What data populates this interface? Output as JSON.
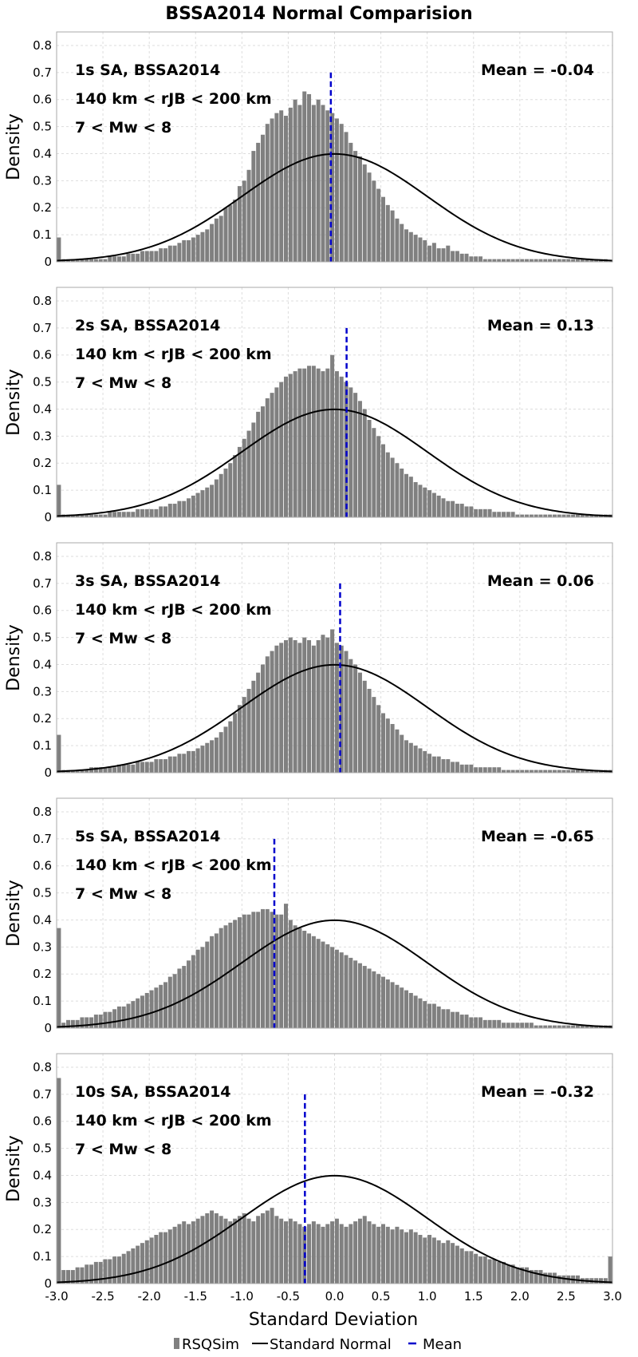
{
  "chart_data": {
    "type": "bar",
    "title": "BSSA2014 Normal Comparision",
    "xlabel": "Standard Deviation",
    "ylabel": "Density",
    "xlim": [
      -3.0,
      3.0
    ],
    "ylim": [
      0,
      0.85
    ],
    "xticks": [
      "-3.0",
      "-2.5",
      "-2.0",
      "-1.5",
      "-1.0",
      "-0.5",
      "0.0",
      "0.5",
      "1.0",
      "1.5",
      "2.0",
      "2.5",
      "3.0"
    ],
    "yticks": [
      "0",
      "0.1",
      "0.2",
      "0.3",
      "0.4",
      "0.5",
      "0.6",
      "0.7",
      "0.8"
    ],
    "grid": true,
    "legend": {
      "position": "bottom-center",
      "entries": [
        "RSQSim",
        "Standard Normal",
        "Mean"
      ]
    },
    "colors": {
      "bars": "#808080",
      "normal": "#000000",
      "mean": "#0000cc",
      "grid": "#dddddd"
    },
    "bin_start": -3.0,
    "bin_width": 0.05,
    "panels": [
      {
        "label_1": "1s SA, BSSA2014",
        "label_2": "140 km < rJB < 200 km",
        "label_3": "7 < Mw < 8",
        "mean_label": "Mean = -0.04",
        "mean": -0.04,
        "densities": [
          0.09,
          0.01,
          0.01,
          0.01,
          0.01,
          0.01,
          0.01,
          0.01,
          0.01,
          0.01,
          0.01,
          0.02,
          0.02,
          0.02,
          0.02,
          0.03,
          0.03,
          0.03,
          0.04,
          0.04,
          0.04,
          0.04,
          0.05,
          0.05,
          0.06,
          0.06,
          0.07,
          0.08,
          0.08,
          0.09,
          0.1,
          0.11,
          0.12,
          0.14,
          0.16,
          0.17,
          0.2,
          0.21,
          0.23,
          0.28,
          0.3,
          0.34,
          0.41,
          0.44,
          0.47,
          0.51,
          0.53,
          0.55,
          0.56,
          0.54,
          0.57,
          0.6,
          0.58,
          0.63,
          0.62,
          0.58,
          0.6,
          0.58,
          0.56,
          0.55,
          0.53,
          0.51,
          0.48,
          0.44,
          0.41,
          0.39,
          0.36,
          0.33,
          0.3,
          0.27,
          0.24,
          0.21,
          0.19,
          0.16,
          0.14,
          0.12,
          0.11,
          0.1,
          0.09,
          0.08,
          0.06,
          0.07,
          0.05,
          0.05,
          0.06,
          0.04,
          0.04,
          0.03,
          0.03,
          0.02,
          0.02,
          0.02,
          0.01,
          0.01,
          0.01,
          0.01,
          0.01,
          0.01,
          0.01,
          0.01,
          0.01,
          0.01,
          0.01,
          0.01,
          0.01,
          0.01,
          0.01,
          0.01,
          0.01,
          0.01,
          0.01,
          0.01,
          0.01,
          0.01,
          0.01,
          0.01,
          0.01,
          0.01,
          0.01,
          0.0
        ]
      },
      {
        "label_1": "2s SA, BSSA2014",
        "label_2": "140 km < rJB < 200 km",
        "label_3": "7 < Mw < 8",
        "mean_label": "Mean = 0.13",
        "mean": 0.13,
        "densities": [
          0.12,
          0.01,
          0.01,
          0.01,
          0.01,
          0.01,
          0.01,
          0.01,
          0.01,
          0.01,
          0.01,
          0.02,
          0.02,
          0.02,
          0.02,
          0.02,
          0.02,
          0.03,
          0.03,
          0.03,
          0.03,
          0.03,
          0.04,
          0.04,
          0.05,
          0.05,
          0.06,
          0.06,
          0.07,
          0.08,
          0.09,
          0.1,
          0.11,
          0.12,
          0.14,
          0.16,
          0.18,
          0.2,
          0.23,
          0.26,
          0.29,
          0.32,
          0.35,
          0.39,
          0.41,
          0.44,
          0.46,
          0.48,
          0.5,
          0.52,
          0.53,
          0.54,
          0.55,
          0.55,
          0.56,
          0.56,
          0.55,
          0.54,
          0.55,
          0.6,
          0.54,
          0.52,
          0.5,
          0.48,
          0.46,
          0.43,
          0.4,
          0.36,
          0.33,
          0.3,
          0.27,
          0.24,
          0.22,
          0.2,
          0.18,
          0.16,
          0.15,
          0.13,
          0.12,
          0.11,
          0.1,
          0.09,
          0.08,
          0.07,
          0.06,
          0.06,
          0.05,
          0.05,
          0.04,
          0.04,
          0.03,
          0.03,
          0.03,
          0.03,
          0.02,
          0.02,
          0.02,
          0.02,
          0.02,
          0.01,
          0.01,
          0.01,
          0.01,
          0.01,
          0.01,
          0.01,
          0.01,
          0.01,
          0.01,
          0.01,
          0.01,
          0.01,
          0.01,
          0.01,
          0.01,
          0.01,
          0.01,
          0.01,
          0.01,
          0.01
        ]
      },
      {
        "label_1": "3s SA, BSSA2014",
        "label_2": "140 km < rJB < 200 km",
        "label_3": "7 < Mw < 8",
        "mean_label": "Mean = 0.06",
        "mean": 0.06,
        "densities": [
          0.14,
          0.01,
          0.01,
          0.01,
          0.01,
          0.01,
          0.01,
          0.02,
          0.02,
          0.02,
          0.02,
          0.02,
          0.02,
          0.03,
          0.03,
          0.03,
          0.03,
          0.04,
          0.04,
          0.04,
          0.04,
          0.05,
          0.05,
          0.05,
          0.06,
          0.06,
          0.07,
          0.07,
          0.08,
          0.08,
          0.09,
          0.1,
          0.11,
          0.12,
          0.13,
          0.15,
          0.17,
          0.19,
          0.22,
          0.25,
          0.28,
          0.31,
          0.34,
          0.37,
          0.4,
          0.43,
          0.45,
          0.47,
          0.48,
          0.49,
          0.5,
          0.49,
          0.48,
          0.5,
          0.49,
          0.47,
          0.49,
          0.51,
          0.5,
          0.53,
          0.48,
          0.47,
          0.45,
          0.42,
          0.4,
          0.37,
          0.34,
          0.31,
          0.28,
          0.25,
          0.22,
          0.2,
          0.18,
          0.16,
          0.14,
          0.12,
          0.11,
          0.1,
          0.09,
          0.08,
          0.07,
          0.06,
          0.06,
          0.05,
          0.05,
          0.04,
          0.04,
          0.03,
          0.03,
          0.03,
          0.02,
          0.02,
          0.02,
          0.02,
          0.02,
          0.02,
          0.01,
          0.01,
          0.01,
          0.01,
          0.01,
          0.01,
          0.01,
          0.01,
          0.01,
          0.01,
          0.01,
          0.01,
          0.01,
          0.01,
          0.01,
          0.01,
          0.01,
          0.01,
          0.01,
          0.01,
          0.01,
          0.01,
          0.01,
          0.01
        ]
      },
      {
        "label_1": "5s SA, BSSA2014",
        "label_2": "140 km < rJB < 200 km",
        "label_3": "7 < Mw < 8",
        "mean_label": "Mean = -0.65",
        "mean": -0.65,
        "densities": [
          0.37,
          0.02,
          0.03,
          0.03,
          0.03,
          0.04,
          0.04,
          0.04,
          0.05,
          0.05,
          0.06,
          0.06,
          0.07,
          0.08,
          0.08,
          0.09,
          0.1,
          0.11,
          0.12,
          0.13,
          0.14,
          0.15,
          0.16,
          0.17,
          0.19,
          0.2,
          0.22,
          0.23,
          0.25,
          0.27,
          0.29,
          0.3,
          0.32,
          0.34,
          0.35,
          0.37,
          0.38,
          0.39,
          0.4,
          0.41,
          0.42,
          0.42,
          0.43,
          0.43,
          0.44,
          0.44,
          0.43,
          0.42,
          0.42,
          0.46,
          0.4,
          0.38,
          0.37,
          0.36,
          0.35,
          0.34,
          0.33,
          0.32,
          0.31,
          0.3,
          0.29,
          0.28,
          0.27,
          0.26,
          0.25,
          0.24,
          0.23,
          0.22,
          0.21,
          0.2,
          0.19,
          0.18,
          0.17,
          0.16,
          0.15,
          0.14,
          0.13,
          0.12,
          0.11,
          0.1,
          0.09,
          0.09,
          0.08,
          0.07,
          0.07,
          0.06,
          0.06,
          0.05,
          0.05,
          0.04,
          0.04,
          0.04,
          0.03,
          0.03,
          0.03,
          0.03,
          0.02,
          0.02,
          0.02,
          0.02,
          0.02,
          0.02,
          0.02,
          0.01,
          0.01,
          0.01,
          0.01,
          0.01,
          0.01,
          0.01,
          0.01,
          0.01,
          0.01,
          0.01,
          0.01,
          0.01,
          0.01,
          0.01,
          0.01,
          0.01
        ]
      },
      {
        "label_1": "10s SA, BSSA2014",
        "label_2": "140 km < rJB < 200 km",
        "label_3": "7 < Mw < 8",
        "mean_label": "Mean = -0.32",
        "mean": -0.32,
        "densities": [
          0.76,
          0.05,
          0.05,
          0.05,
          0.06,
          0.06,
          0.07,
          0.07,
          0.08,
          0.08,
          0.09,
          0.09,
          0.1,
          0.1,
          0.11,
          0.12,
          0.13,
          0.14,
          0.15,
          0.16,
          0.17,
          0.18,
          0.19,
          0.19,
          0.2,
          0.21,
          0.22,
          0.23,
          0.22,
          0.23,
          0.24,
          0.25,
          0.26,
          0.27,
          0.26,
          0.25,
          0.24,
          0.23,
          0.24,
          0.25,
          0.26,
          0.24,
          0.23,
          0.25,
          0.26,
          0.27,
          0.28,
          0.25,
          0.24,
          0.23,
          0.24,
          0.23,
          0.22,
          0.21,
          0.22,
          0.23,
          0.22,
          0.21,
          0.22,
          0.23,
          0.24,
          0.22,
          0.21,
          0.22,
          0.23,
          0.24,
          0.25,
          0.23,
          0.22,
          0.21,
          0.22,
          0.21,
          0.2,
          0.21,
          0.2,
          0.19,
          0.2,
          0.19,
          0.18,
          0.17,
          0.18,
          0.17,
          0.16,
          0.15,
          0.16,
          0.15,
          0.14,
          0.13,
          0.12,
          0.12,
          0.11,
          0.1,
          0.1,
          0.09,
          0.09,
          0.08,
          0.08,
          0.07,
          0.07,
          0.06,
          0.06,
          0.06,
          0.05,
          0.05,
          0.05,
          0.04,
          0.04,
          0.04,
          0.03,
          0.03,
          0.03,
          0.03,
          0.03,
          0.02,
          0.02,
          0.02,
          0.02,
          0.02,
          0.02,
          0.1
        ]
      }
    ]
  }
}
